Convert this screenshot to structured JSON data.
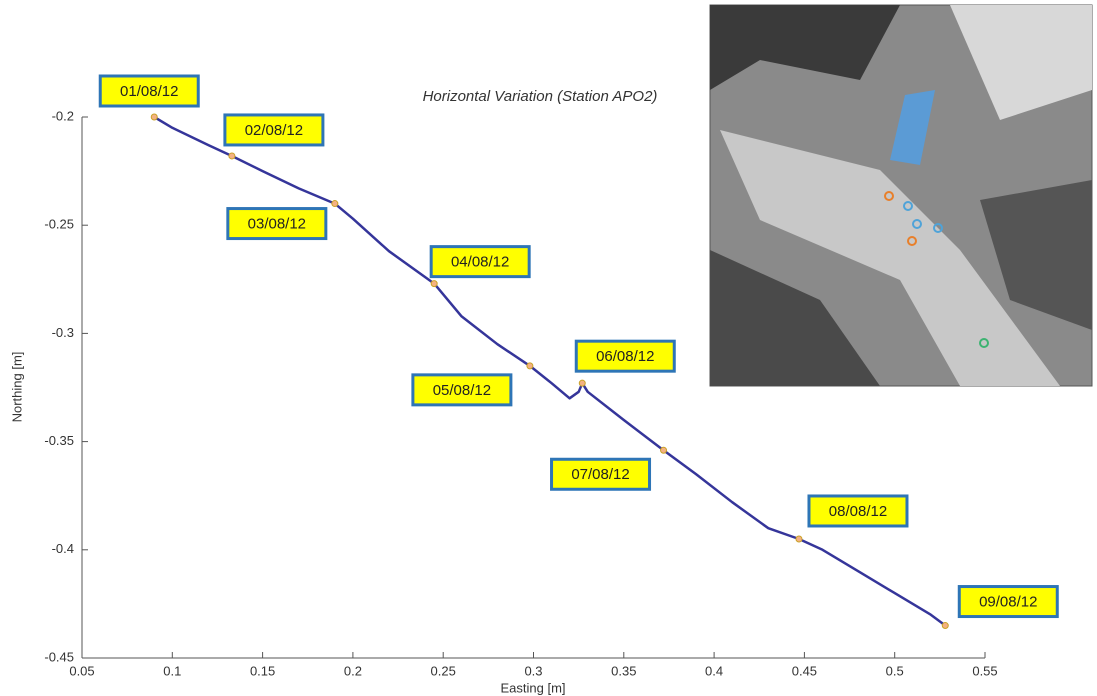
{
  "chart_data": {
    "type": "line",
    "title": "Horizontal Variation (Station APO2)",
    "xlabel": "Easting [m]",
    "ylabel": "Northing [m]",
    "color": "#35359a",
    "x": [
      0.09,
      0.1,
      0.12,
      0.133,
      0.15,
      0.17,
      0.19,
      0.2,
      0.22,
      0.245,
      0.26,
      0.28,
      0.298,
      0.31,
      0.32,
      0.325,
      0.327,
      0.33,
      0.35,
      0.372,
      0.39,
      0.41,
      0.43,
      0.447,
      0.46,
      0.48,
      0.5,
      0.52,
      0.528
    ],
    "values": [
      -0.2,
      -0.205,
      -0.213,
      -0.218,
      -0.225,
      -0.233,
      -0.24,
      -0.247,
      -0.262,
      -0.277,
      -0.292,
      -0.305,
      -0.315,
      -0.323,
      -0.33,
      -0.327,
      -0.323,
      -0.327,
      -0.34,
      -0.354,
      -0.365,
      -0.378,
      -0.39,
      -0.395,
      -0.4,
      -0.41,
      -0.42,
      -0.43,
      -0.435
    ],
    "xlim": [
      0.05,
      0.55
    ],
    "ylim": [
      -0.45,
      -0.2
    ],
    "xticks": [
      0.05,
      0.1,
      0.15,
      0.2,
      0.25,
      0.3,
      0.35,
      0.4,
      0.45,
      0.5,
      0.55
    ],
    "yticks": [
      -0.45,
      -0.4,
      -0.35,
      -0.3,
      -0.25,
      -0.2
    ],
    "annotations": [
      {
        "text": "01/08/12",
        "x": 0.09,
        "y": -0.2
      },
      {
        "text": "02/08/12",
        "x": 0.133,
        "y": -0.218
      },
      {
        "text": "03/08/12",
        "x": 0.19,
        "y": -0.24
      },
      {
        "text": "04/08/12",
        "x": 0.245,
        "y": -0.277
      },
      {
        "text": "05/08/12",
        "x": 0.298,
        "y": -0.315
      },
      {
        "text": "06/08/12",
        "x": 0.327,
        "y": -0.323
      },
      {
        "text": "07/08/12",
        "x": 0.372,
        "y": -0.354
      },
      {
        "text": "08/08/12",
        "x": 0.447,
        "y": -0.395
      },
      {
        "text": "09/08/12",
        "x": 0.528,
        "y": -0.435
      }
    ]
  }
}
